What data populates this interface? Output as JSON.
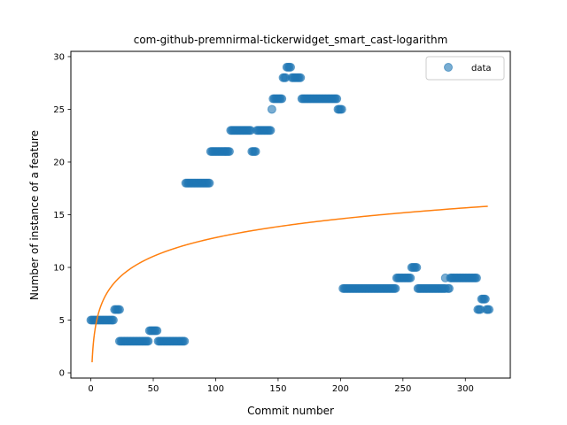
{
  "chart_data": {
    "type": "scatter",
    "title": "com-github-premnirmal-tickerwidget_smart_cast-logarithm",
    "xlabel": "Commit number",
    "ylabel": "Number of instance of a feature",
    "xlim": [
      -16,
      336
    ],
    "ylim": [
      -0.5,
      30.5
    ],
    "xticks": [
      0,
      50,
      100,
      150,
      200,
      250,
      300
    ],
    "yticks": [
      0,
      5,
      10,
      15,
      20,
      25,
      30
    ],
    "legend": {
      "position": "top-right",
      "entries": [
        "data"
      ]
    },
    "colors": {
      "data": "#1f77b4",
      "fit": "#ff7f0e"
    },
    "series": [
      {
        "name": "data",
        "kind": "scatter",
        "segments": [
          {
            "x_start": 0,
            "x_end": 19,
            "y": 5
          },
          {
            "x_start": 19,
            "x_end": 24,
            "y": 6
          },
          {
            "x_start": 23,
            "x_end": 47,
            "y": 3
          },
          {
            "x_start": 47,
            "x_end": 54,
            "y": 4
          },
          {
            "x_start": 54,
            "x_end": 76,
            "y": 3
          },
          {
            "x_start": 76,
            "x_end": 96,
            "y": 18
          },
          {
            "x_start": 96,
            "x_end": 112,
            "y": 21
          },
          {
            "x_start": 112,
            "x_end": 129,
            "y": 23
          },
          {
            "x_start": 129,
            "x_end": 133,
            "y": 21
          },
          {
            "x_start": 133,
            "x_end": 145,
            "y": 23
          },
          {
            "x_start": 146,
            "x_end": 154,
            "y": 26
          },
          {
            "x_start": 154,
            "x_end": 157,
            "y": 28
          },
          {
            "x_start": 157,
            "x_end": 161,
            "y": 29
          },
          {
            "x_start": 161,
            "x_end": 169,
            "y": 28
          },
          {
            "x_start": 169,
            "x_end": 198,
            "y": 26
          },
          {
            "x_start": 198,
            "x_end": 202,
            "y": 25
          },
          {
            "x_start": 202,
            "x_end": 245,
            "y": 8
          },
          {
            "x_start": 245,
            "x_end": 257,
            "y": 9
          },
          {
            "x_start": 257,
            "x_end": 262,
            "y": 10
          },
          {
            "x_start": 262,
            "x_end": 285,
            "y": 8
          },
          {
            "x_start": 286,
            "x_end": 288,
            "y": 8
          },
          {
            "x_start": 288,
            "x_end": 310,
            "y": 9
          },
          {
            "x_start": 310,
            "x_end": 313,
            "y": 6
          },
          {
            "x_start": 313,
            "x_end": 317,
            "y": 7
          },
          {
            "x_start": 317,
            "x_end": 320,
            "y": 6
          }
        ],
        "extra_points": [
          {
            "x": 145,
            "y": 25
          },
          {
            "x": 284,
            "y": 9
          }
        ]
      },
      {
        "name": "fit",
        "kind": "line",
        "function": "logarithm",
        "x_range": [
          1,
          318
        ],
        "y_at_start": 1.0,
        "y_at_end": 15.8
      }
    ]
  }
}
